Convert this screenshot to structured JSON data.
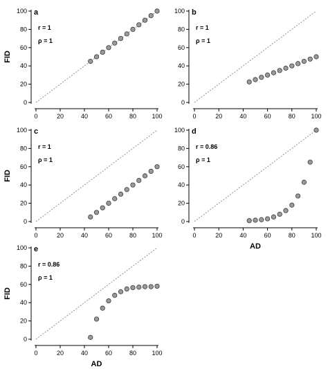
{
  "chart_data": [
    {
      "type": "scatter",
      "panel_label": "a",
      "stats": [
        "r = 1",
        "ρ = 1"
      ],
      "xlabel": "",
      "ylabel": "FID",
      "xlim": [
        0,
        100
      ],
      "ylim": [
        0,
        100
      ],
      "xticks": [
        0,
        20,
        40,
        60,
        80,
        100
      ],
      "yticks": [
        0,
        20,
        40,
        60,
        80,
        100
      ],
      "reference_line": "dashed y = x",
      "grid": false,
      "x": [
        45,
        50,
        55,
        60,
        65,
        70,
        75,
        80,
        85,
        90,
        95,
        100
      ],
      "y": [
        45,
        50,
        55,
        60,
        65,
        70,
        75,
        80,
        85,
        90,
        95,
        100
      ]
    },
    {
      "type": "scatter",
      "panel_label": "b",
      "stats": [
        "r = 1",
        "ρ = 1"
      ],
      "xlabel": "",
      "ylabel": "",
      "xlim": [
        0,
        100
      ],
      "ylim": [
        0,
        100
      ],
      "xticks": [
        0,
        20,
        40,
        60,
        80,
        100
      ],
      "yticks": [
        0,
        20,
        40,
        60,
        80,
        100
      ],
      "reference_line": "dashed y = x",
      "grid": false,
      "x": [
        45,
        50,
        55,
        60,
        65,
        70,
        75,
        80,
        85,
        90,
        95,
        100
      ],
      "y": [
        22.5,
        25,
        27.5,
        30,
        32.5,
        35,
        37.5,
        40,
        42.5,
        45,
        47.5,
        50
      ]
    },
    {
      "type": "scatter",
      "panel_label": "c",
      "stats": [
        "r = 1",
        "ρ = 1"
      ],
      "xlabel": "",
      "ylabel": "FID",
      "xlim": [
        0,
        100
      ],
      "ylim": [
        0,
        100
      ],
      "xticks": [
        0,
        20,
        40,
        60,
        80,
        100
      ],
      "yticks": [
        0,
        20,
        40,
        60,
        80,
        100
      ],
      "reference_line": "dashed y = x",
      "grid": false,
      "x": [
        45,
        50,
        55,
        60,
        65,
        70,
        75,
        80,
        85,
        90,
        95,
        100
      ],
      "y": [
        5,
        10,
        15,
        20,
        25,
        30,
        35,
        40,
        45,
        50,
        55,
        60
      ]
    },
    {
      "type": "scatter",
      "panel_label": "d",
      "stats": [
        "r = 0.86",
        "ρ = 1"
      ],
      "xlabel": "AD",
      "ylabel": "",
      "xlim": [
        0,
        100
      ],
      "ylim": [
        0,
        100
      ],
      "xticks": [
        0,
        20,
        40,
        60,
        80,
        100
      ],
      "yticks": [
        0,
        20,
        40,
        60,
        80,
        100
      ],
      "reference_line": "dashed y = x",
      "grid": false,
      "x": [
        45,
        50,
        55,
        60,
        65,
        70,
        75,
        80,
        85,
        90,
        95,
        100
      ],
      "y": [
        1,
        1.5,
        2,
        3,
        5,
        8,
        12,
        18,
        28,
        43,
        65,
        100
      ]
    },
    {
      "type": "scatter",
      "panel_label": "e",
      "stats": [
        "r = 0.86",
        "ρ = 1"
      ],
      "xlabel": "AD",
      "ylabel": "FID",
      "xlim": [
        0,
        100
      ],
      "ylim": [
        0,
        100
      ],
      "xticks": [
        0,
        20,
        40,
        60,
        80,
        100
      ],
      "yticks": [
        0,
        20,
        40,
        60,
        80,
        100
      ],
      "reference_line": "dashed y = x",
      "grid": false,
      "x": [
        45,
        50,
        55,
        60,
        65,
        70,
        75,
        80,
        85,
        90,
        95,
        100
      ],
      "y": [
        2,
        22,
        34,
        42,
        48,
        52,
        55,
        56.5,
        57,
        57.5,
        57.5,
        58
      ]
    }
  ]
}
